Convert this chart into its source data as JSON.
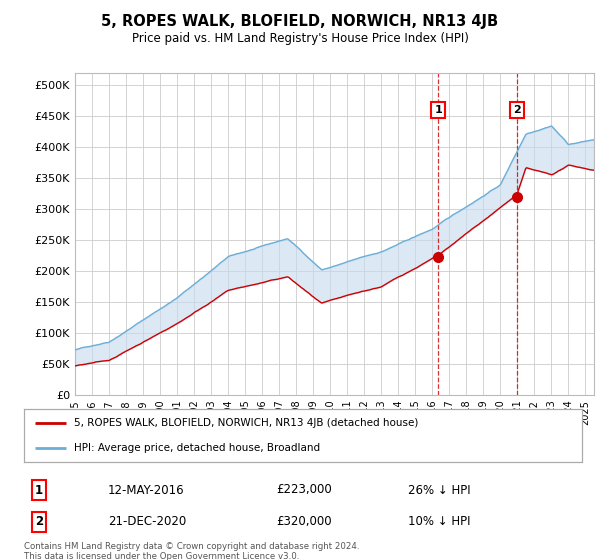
{
  "title": "5, ROPES WALK, BLOFIELD, NORWICH, NR13 4JB",
  "subtitle": "Price paid vs. HM Land Registry's House Price Index (HPI)",
  "yticks": [
    0,
    50000,
    100000,
    150000,
    200000,
    250000,
    300000,
    350000,
    400000,
    450000,
    500000
  ],
  "ytick_labels": [
    "£0",
    "£50K",
    "£100K",
    "£150K",
    "£200K",
    "£250K",
    "£300K",
    "£350K",
    "£400K",
    "£450K",
    "£500K"
  ],
  "ylim": [
    0,
    520000
  ],
  "hpi_color": "#6baed6",
  "hpi_fill_color": "#c6dbef",
  "price_color": "#cc0000",
  "marker_color": "#cc0000",
  "grid_color": "#cccccc",
  "sale1_x": 2016.36,
  "sale1_y": 223000,
  "sale2_x": 2020.97,
  "sale2_y": 320000,
  "sale1_date": "12-MAY-2016",
  "sale1_price": "£223,000",
  "sale1_hpi": "26% ↓ HPI",
  "sale2_date": "21-DEC-2020",
  "sale2_price": "£320,000",
  "sale2_hpi": "10% ↓ HPI",
  "legend_label1": "5, ROPES WALK, BLOFIELD, NORWICH, NR13 4JB (detached house)",
  "legend_label2": "HPI: Average price, detached house, Broadland",
  "footer": "Contains HM Land Registry data © Crown copyright and database right 2024.\nThis data is licensed under the Open Government Licence v3.0.",
  "xmin": 1995.0,
  "xmax": 2025.5
}
